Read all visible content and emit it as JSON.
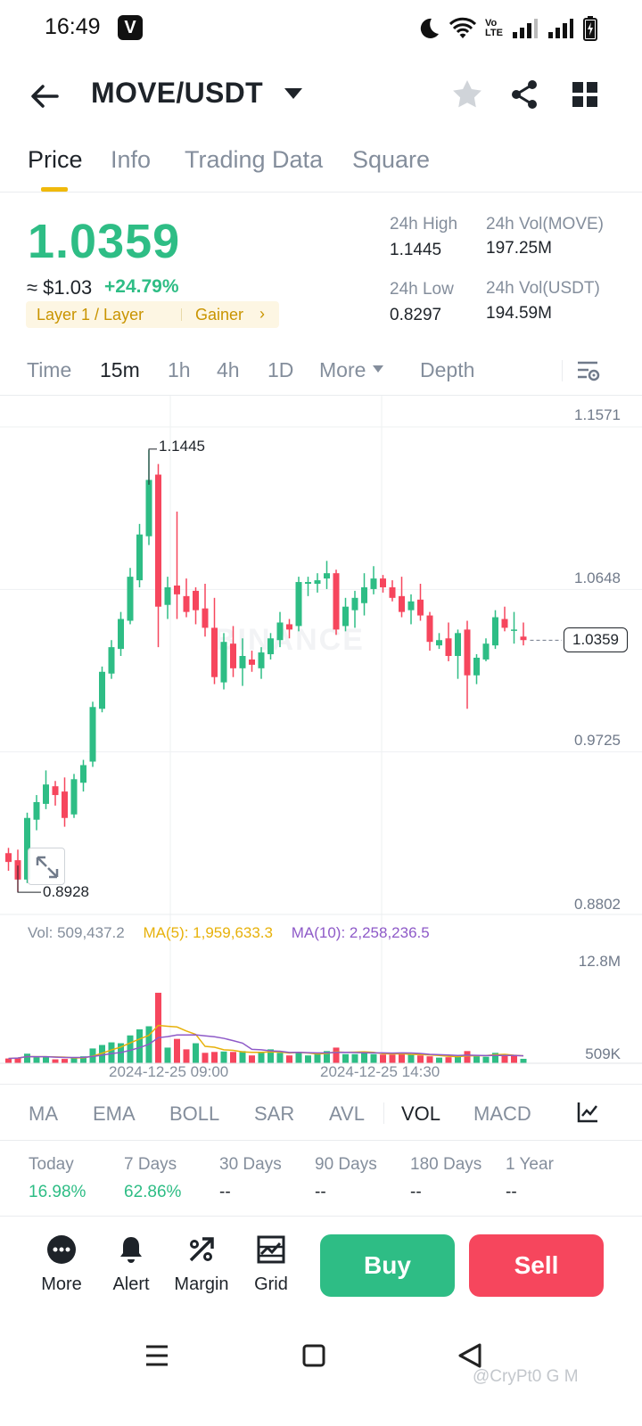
{
  "status_bar": {
    "time": "16:49",
    "badge": "V",
    "volte": "Vo\nLTE"
  },
  "header": {
    "pair": "MOVE/USDT"
  },
  "tabs": [
    {
      "label": "Price",
      "active": true
    },
    {
      "label": "Info",
      "active": false
    },
    {
      "label": "Trading Data",
      "active": false
    },
    {
      "label": "Square",
      "active": false
    }
  ],
  "ticker": {
    "last_price": "1.0359",
    "approx_usd": "≈ $1.03",
    "change_pct": "+24.79%",
    "tag_category": "Layer 1 / Layer",
    "tag_gainer": "Gainer",
    "tag_arrow": "›",
    "high_label": "24h High",
    "high_value": "1.1445",
    "low_label": "24h Low",
    "low_value": "0.8297",
    "vol_base_label": "24h Vol(MOVE)",
    "vol_base_value": "197.25M",
    "vol_quote_label": "24h Vol(USDT)",
    "vol_quote_value": "194.59M"
  },
  "intervals": {
    "time": "Time",
    "m15": "15m",
    "h1": "1h",
    "h4": "4h",
    "d1": "1D",
    "more": "More",
    "depth": "Depth",
    "selected": "15m"
  },
  "chart": {
    "price_axis": {
      "top": "1.1571",
      "upper": "1.0648",
      "lower": "0.9725",
      "bottom": "0.8802"
    },
    "current_price_tag": "1.0359",
    "high_marker": "1.1445",
    "low_marker": "0.8928",
    "watermark": "BINANCE",
    "volume": {
      "vol_text": "Vol: 509,437.2",
      "ma5_text": "MA(5): 1,959,633.3",
      "ma10_text": "MA(10): 2,258,236.5",
      "top_tick": "12.8M",
      "bottom_tick": "509K"
    },
    "time_labels": {
      "t1": "2024-12-25 09:00",
      "t2": "2024-12-25 14:30"
    }
  },
  "chart_data": {
    "type": "candlestick",
    "interval": "15m",
    "ylim": [
      0.8802,
      1.1571
    ],
    "y_ticks": [
      1.1571,
      1.0648,
      0.9725,
      0.8802
    ],
    "high": 1.1445,
    "low": 0.8928,
    "last": 1.0359,
    "x_labels": [
      "2024-12-25 09:00",
      "2024-12-25 14:30"
    ],
    "candles": [
      {
        "o": 0.915,
        "h": 0.918,
        "l": 0.905,
        "c": 0.91
      },
      {
        "o": 0.911,
        "h": 0.917,
        "l": 0.893,
        "c": 0.9
      },
      {
        "o": 0.9,
        "h": 0.938,
        "l": 0.898,
        "c": 0.935
      },
      {
        "o": 0.934,
        "h": 0.948,
        "l": 0.928,
        "c": 0.944
      },
      {
        "o": 0.943,
        "h": 0.962,
        "l": 0.94,
        "c": 0.954
      },
      {
        "o": 0.953,
        "h": 0.956,
        "l": 0.942,
        "c": 0.948
      },
      {
        "o": 0.95,
        "h": 0.958,
        "l": 0.93,
        "c": 0.935
      },
      {
        "o": 0.937,
        "h": 0.96,
        "l": 0.935,
        "c": 0.957
      },
      {
        "o": 0.955,
        "h": 0.968,
        "l": 0.95,
        "c": 0.965
      },
      {
        "o": 0.967,
        "h": 1.001,
        "l": 0.964,
        "c": 0.998
      },
      {
        "o": 0.997,
        "h": 1.021,
        "l": 0.995,
        "c": 1.018
      },
      {
        "o": 1.017,
        "h": 1.036,
        "l": 1.014,
        "c": 1.032
      },
      {
        "o": 1.031,
        "h": 1.052,
        "l": 1.027,
        "c": 1.048
      },
      {
        "o": 1.047,
        "h": 1.077,
        "l": 1.045,
        "c": 1.072
      },
      {
        "o": 1.07,
        "h": 1.102,
        "l": 1.066,
        "c": 1.096
      },
      {
        "o": 1.095,
        "h": 1.144,
        "l": 1.09,
        "c": 1.127
      },
      {
        "o": 1.13,
        "h": 1.136,
        "l": 1.032,
        "c": 1.055
      },
      {
        "o": 1.056,
        "h": 1.072,
        "l": 1.048,
        "c": 1.066
      },
      {
        "o": 1.067,
        "h": 1.109,
        "l": 1.048,
        "c": 1.062
      },
      {
        "o": 1.061,
        "h": 1.071,
        "l": 1.049,
        "c": 1.052
      },
      {
        "o": 1.064,
        "h": 1.066,
        "l": 1.045,
        "c": 1.053
      },
      {
        "o": 1.054,
        "h": 1.068,
        "l": 1.038,
        "c": 1.043
      },
      {
        "o": 1.043,
        "h": 1.06,
        "l": 1.011,
        "c": 1.015
      },
      {
        "o": 1.012,
        "h": 1.04,
        "l": 1.008,
        "c": 1.035
      },
      {
        "o": 1.034,
        "h": 1.044,
        "l": 1.015,
        "c": 1.02
      },
      {
        "o": 1.02,
        "h": 1.037,
        "l": 1.01,
        "c": 1.027
      },
      {
        "o": 1.025,
        "h": 1.03,
        "l": 1.018,
        "c": 1.022
      },
      {
        "o": 1.02,
        "h": 1.032,
        "l": 1.014,
        "c": 1.029
      },
      {
        "o": 1.028,
        "h": 1.04,
        "l": 1.025,
        "c": 1.037
      },
      {
        "o": 1.036,
        "h": 1.052,
        "l": 1.032,
        "c": 1.046
      },
      {
        "o": 1.045,
        "h": 1.048,
        "l": 1.037,
        "c": 1.042
      },
      {
        "o": 1.044,
        "h": 1.072,
        "l": 1.041,
        "c": 1.069
      },
      {
        "o": 1.068,
        "h": 1.072,
        "l": 1.061,
        "c": 1.069
      },
      {
        "o": 1.068,
        "h": 1.074,
        "l": 1.063,
        "c": 1.07
      },
      {
        "o": 1.071,
        "h": 1.081,
        "l": 1.065,
        "c": 1.074
      },
      {
        "o": 1.074,
        "h": 1.076,
        "l": 1.039,
        "c": 1.042
      },
      {
        "o": 1.044,
        "h": 1.06,
        "l": 1.041,
        "c": 1.055
      },
      {
        "o": 1.053,
        "h": 1.064,
        "l": 1.043,
        "c": 1.06
      },
      {
        "o": 1.057,
        "h": 1.074,
        "l": 1.05,
        "c": 1.066
      },
      {
        "o": 1.065,
        "h": 1.078,
        "l": 1.062,
        "c": 1.071
      },
      {
        "o": 1.071,
        "h": 1.073,
        "l": 1.063,
        "c": 1.066
      },
      {
        "o": 1.066,
        "h": 1.07,
        "l": 1.058,
        "c": 1.06
      },
      {
        "o": 1.061,
        "h": 1.072,
        "l": 1.049,
        "c": 1.052
      },
      {
        "o": 1.053,
        "h": 1.062,
        "l": 1.045,
        "c": 1.058
      },
      {
        "o": 1.059,
        "h": 1.068,
        "l": 1.047,
        "c": 1.05
      },
      {
        "o": 1.05,
        "h": 1.052,
        "l": 1.03,
        "c": 1.035
      },
      {
        "o": 1.033,
        "h": 1.04,
        "l": 1.031,
        "c": 1.036
      },
      {
        "o": 1.037,
        "h": 1.046,
        "l": 1.024,
        "c": 1.027
      },
      {
        "o": 1.027,
        "h": 1.042,
        "l": 1.014,
        "c": 1.04
      },
      {
        "o": 1.042,
        "h": 1.047,
        "l": 0.997,
        "c": 1.016
      },
      {
        "o": 1.016,
        "h": 1.028,
        "l": 1.011,
        "c": 1.026
      },
      {
        "o": 1.025,
        "h": 1.037,
        "l": 1.024,
        "c": 1.034
      },
      {
        "o": 1.033,
        "h": 1.053,
        "l": 1.031,
        "c": 1.049
      },
      {
        "o": 1.048,
        "h": 1.055,
        "l": 1.041,
        "c": 1.043
      },
      {
        "o": 1.042,
        "h": 1.052,
        "l": 1.034,
        "c": 1.042
      },
      {
        "o": 1.038,
        "h": 1.046,
        "l": 1.033,
        "c": 1.036
      }
    ],
    "volumes": [
      {
        "v": 0.55,
        "d": "dn"
      },
      {
        "v": 0.65,
        "d": "dn"
      },
      {
        "v": 1.1,
        "d": "up"
      },
      {
        "v": 0.7,
        "d": "up"
      },
      {
        "v": 0.75,
        "d": "up"
      },
      {
        "v": 0.45,
        "d": "dn"
      },
      {
        "v": 0.5,
        "d": "dn"
      },
      {
        "v": 0.65,
        "d": "up"
      },
      {
        "v": 0.8,
        "d": "up"
      },
      {
        "v": 1.7,
        "d": "up"
      },
      {
        "v": 2.1,
        "d": "up"
      },
      {
        "v": 2.4,
        "d": "up"
      },
      {
        "v": 2.3,
        "d": "up"
      },
      {
        "v": 3.2,
        "d": "up"
      },
      {
        "v": 3.9,
        "d": "up"
      },
      {
        "v": 4.25,
        "d": "up"
      },
      {
        "v": 8.1,
        "d": "dn"
      },
      {
        "v": 1.8,
        "d": "up"
      },
      {
        "v": 2.8,
        "d": "dn"
      },
      {
        "v": 1.6,
        "d": "dn"
      },
      {
        "v": 2.3,
        "d": "up"
      },
      {
        "v": 1.2,
        "d": "dn"
      },
      {
        "v": 1.3,
        "d": "dn"
      },
      {
        "v": 1.35,
        "d": "up"
      },
      {
        "v": 1.3,
        "d": "dn"
      },
      {
        "v": 1.4,
        "d": "up"
      },
      {
        "v": 0.9,
        "d": "dn"
      },
      {
        "v": 1.3,
        "d": "up"
      },
      {
        "v": 1.6,
        "d": "up"
      },
      {
        "v": 1.2,
        "d": "up"
      },
      {
        "v": 0.9,
        "d": "dn"
      },
      {
        "v": 1.3,
        "d": "up"
      },
      {
        "v": 0.9,
        "d": "up"
      },
      {
        "v": 1.1,
        "d": "up"
      },
      {
        "v": 1.4,
        "d": "up"
      },
      {
        "v": 1.8,
        "d": "dn"
      },
      {
        "v": 1.05,
        "d": "up"
      },
      {
        "v": 1.05,
        "d": "up"
      },
      {
        "v": 1.3,
        "d": "up"
      },
      {
        "v": 1.05,
        "d": "up"
      },
      {
        "v": 1.0,
        "d": "dn"
      },
      {
        "v": 1.0,
        "d": "dn"
      },
      {
        "v": 1.1,
        "d": "dn"
      },
      {
        "v": 1.0,
        "d": "up"
      },
      {
        "v": 0.9,
        "d": "dn"
      },
      {
        "v": 0.8,
        "d": "dn"
      },
      {
        "v": 0.65,
        "d": "up"
      },
      {
        "v": 0.7,
        "d": "dn"
      },
      {
        "v": 0.75,
        "d": "up"
      },
      {
        "v": 1.4,
        "d": "dn"
      },
      {
        "v": 0.8,
        "d": "up"
      },
      {
        "v": 0.75,
        "d": "up"
      },
      {
        "v": 1.2,
        "d": "up"
      },
      {
        "v": 1.0,
        "d": "dn"
      },
      {
        "v": 0.85,
        "d": "dn"
      },
      {
        "v": 0.51,
        "d": "up"
      }
    ],
    "volume_unit": "M",
    "volume_ylim": [
      0,
      12.8
    ]
  },
  "indicators": [
    "MA",
    "EMA",
    "BOLL",
    "SAR",
    "AVL",
    "VOL",
    "MACD"
  ],
  "indicator_selected": "VOL",
  "performance": [
    {
      "label": "Today",
      "value": "16.98%"
    },
    {
      "label": "7 Days",
      "value": "62.86%"
    },
    {
      "label": "30 Days",
      "value": "--"
    },
    {
      "label": "90 Days",
      "value": "--"
    },
    {
      "label": "180 Days",
      "value": "--"
    },
    {
      "label": "1 Year",
      "value": "--"
    }
  ],
  "bottom_bar": {
    "more": "More",
    "alert": "Alert",
    "margin": "Margin",
    "grid": "Grid",
    "buy": "Buy",
    "sell": "Sell"
  },
  "footer_credit": "@CryPt0 G M",
  "colors": {
    "up": "#2ebd85",
    "down": "#f6465d",
    "accent": "#f0b90b"
  }
}
